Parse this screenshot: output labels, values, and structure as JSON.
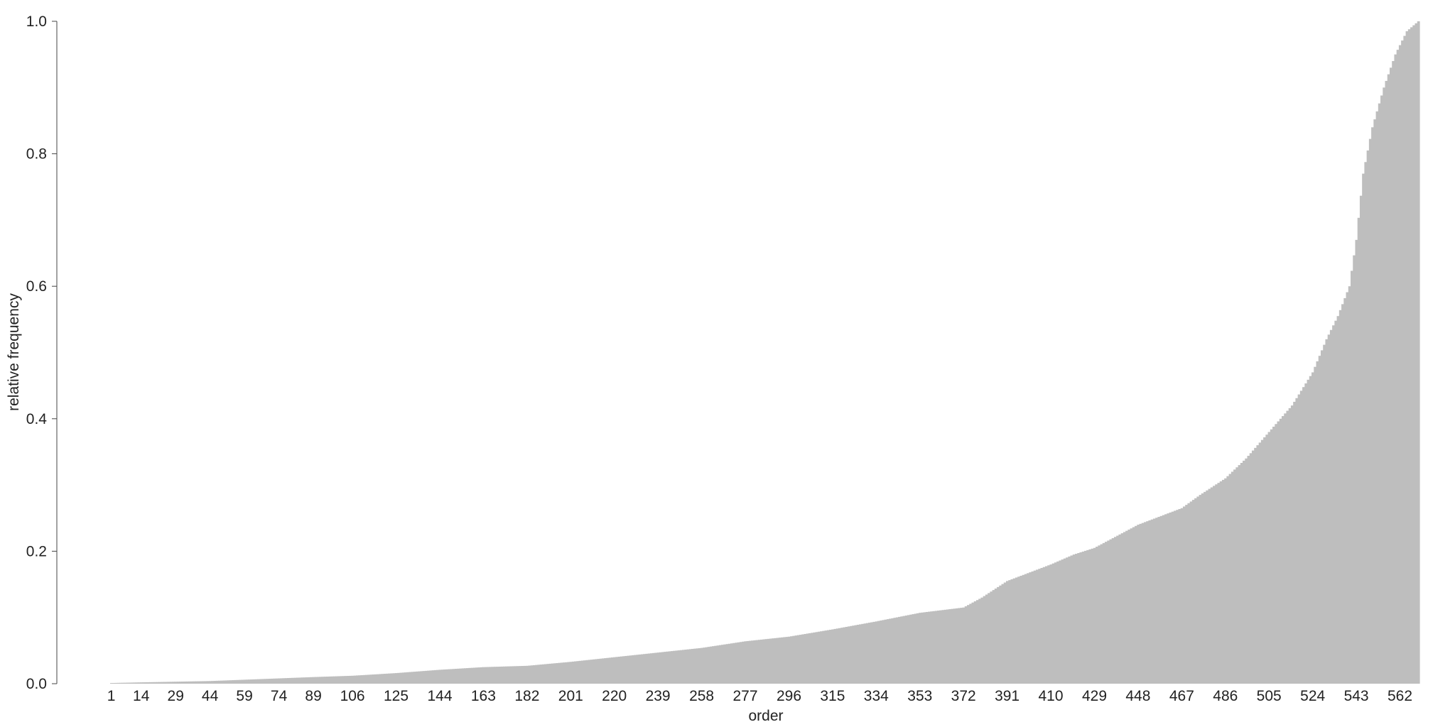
{
  "chart_data": {
    "type": "bar",
    "title": "",
    "xlabel": "order",
    "ylabel": "relative frequency",
    "xlim": [
      1,
      570
    ],
    "ylim": [
      0,
      1.0
    ],
    "bar_color": "#bebebe",
    "axis_color": "#444444",
    "grid": false,
    "legend": "none",
    "y_ticks": [
      "0.0",
      "0.2",
      "0.4",
      "0.6",
      "0.8",
      "1.0"
    ],
    "x_ticks": [
      "1",
      "14",
      "29",
      "44",
      "59",
      "74",
      "89",
      "106",
      "125",
      "144",
      "163",
      "182",
      "201",
      "220",
      "239",
      "258",
      "277",
      "296",
      "315",
      "334",
      "353",
      "372",
      "391",
      "410",
      "429",
      "448",
      "467",
      "486",
      "505",
      "524",
      "543",
      "562"
    ],
    "curve": {
      "order": [
        1,
        14,
        29,
        44,
        59,
        74,
        89,
        106,
        125,
        144,
        163,
        182,
        201,
        220,
        239,
        258,
        277,
        296,
        315,
        334,
        353,
        372,
        380,
        391,
        410,
        420,
        429,
        448,
        467,
        475,
        486,
        495,
        505,
        515,
        524,
        530,
        535,
        540,
        543,
        546,
        550,
        555,
        560,
        565,
        570
      ],
      "relative_frequency": [
        0.001,
        0.002,
        0.003,
        0.004,
        0.006,
        0.008,
        0.01,
        0.012,
        0.016,
        0.021,
        0.025,
        0.027,
        0.033,
        0.04,
        0.047,
        0.054,
        0.064,
        0.071,
        0.082,
        0.094,
        0.107,
        0.115,
        0.13,
        0.155,
        0.18,
        0.195,
        0.205,
        0.24,
        0.265,
        0.285,
        0.31,
        0.34,
        0.38,
        0.42,
        0.47,
        0.52,
        0.555,
        0.6,
        0.67,
        0.77,
        0.84,
        0.9,
        0.95,
        0.985,
        1.0
      ]
    }
  }
}
